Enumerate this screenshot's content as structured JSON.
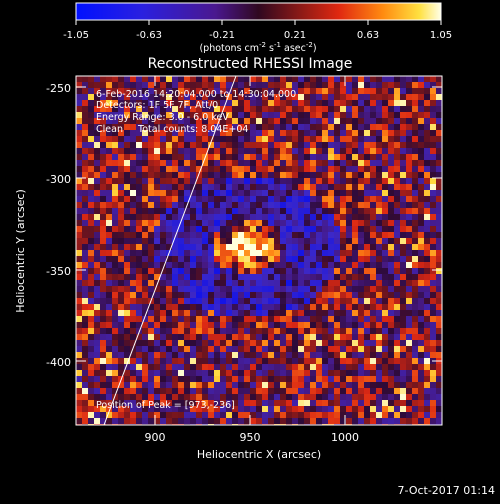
{
  "colorbar": {
    "ticks": [
      "-1.05",
      "-0.63",
      "-0.21",
      "0.21",
      "0.63",
      "1.05"
    ],
    "units_main": "(photons cm",
    "units_sup1": "-2",
    "units_mid1": " s",
    "units_sup2": "-1",
    "units_mid2": " asec",
    "units_sup3": "-2",
    "units_end": ")"
  },
  "title": "Reconstructed RHESSI Image",
  "annotations": {
    "line1": "6-Feb-2016 14:20:04.000 to 14:30:04.000",
    "line2": "Detectors: 1F 5F 7F, Att/0",
    "line3": "Energy Range: 3.0 - 6.0 keV",
    "line4": "Clean     Total counts: 8.04E+04",
    "peak": "Position of Peak = [973,-236]"
  },
  "axes": {
    "xlabel": "Heliocentric X (arcsec)",
    "ylabel": "Heliocentric Y (arcsec)",
    "xticks": [
      "900",
      "950",
      "1000"
    ],
    "yticks": [
      "-250",
      "-300",
      "-350",
      "-400"
    ]
  },
  "footer": {
    "timestamp": "7-Oct-2017 01:14"
  },
  "colors": {
    "background": "#000000",
    "limb_line": "#ffffff"
  }
}
